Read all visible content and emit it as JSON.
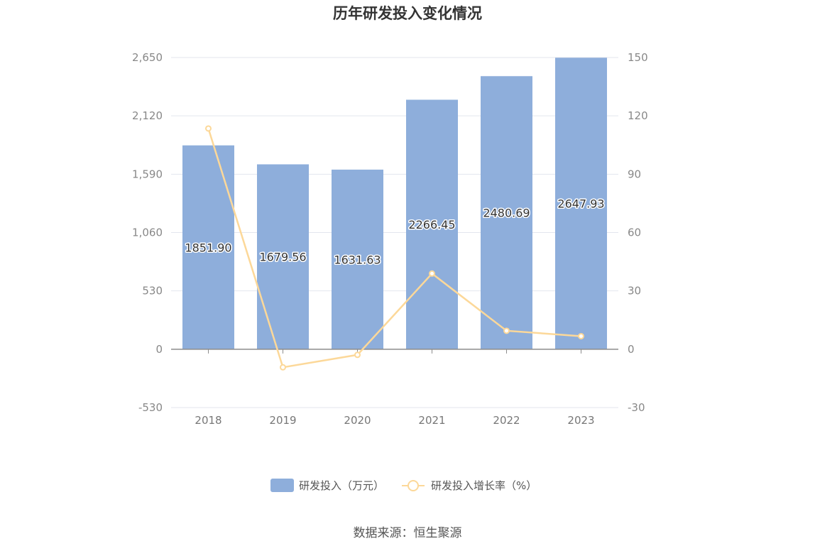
{
  "source_text": "数据来源：恒生聚源",
  "chart_data": {
    "type": "bar+line",
    "title": "历年研发投入变化情况",
    "categories": [
      "2018",
      "2019",
      "2020",
      "2021",
      "2022",
      "2023"
    ],
    "series": [
      {
        "name": "研发投入（万元）",
        "type": "bar",
        "axis": "left",
        "color": "#8eaedb",
        "values": [
          1851.9,
          1679.56,
          1631.63,
          2266.45,
          2480.69,
          2647.93
        ],
        "labels": [
          "1851.90",
          "1679.56",
          "1631.63",
          "2266.45",
          "2480.69",
          "2647.93"
        ]
      },
      {
        "name": "研发投入增长率（%）",
        "type": "line",
        "axis": "right",
        "color": "#fcd899",
        "values": [
          113.5,
          -9.3,
          -2.9,
          38.9,
          9.5,
          6.7
        ]
      }
    ],
    "y_left": {
      "min": -530,
      "max": 2650,
      "ticks": [
        2650,
        2120,
        1590,
        1060,
        530,
        0,
        -530
      ],
      "tick_labels": [
        "2,650",
        "2,120",
        "1,590",
        "1,060",
        "530",
        "0",
        "-530"
      ]
    },
    "y_right": {
      "min": -30,
      "max": 150,
      "ticks": [
        150,
        120,
        90,
        60,
        30,
        0,
        -30
      ],
      "tick_labels": [
        "150",
        "120",
        "90",
        "60",
        "30",
        "0",
        "-30"
      ]
    },
    "grid": true,
    "legend_position": "bottom"
  }
}
